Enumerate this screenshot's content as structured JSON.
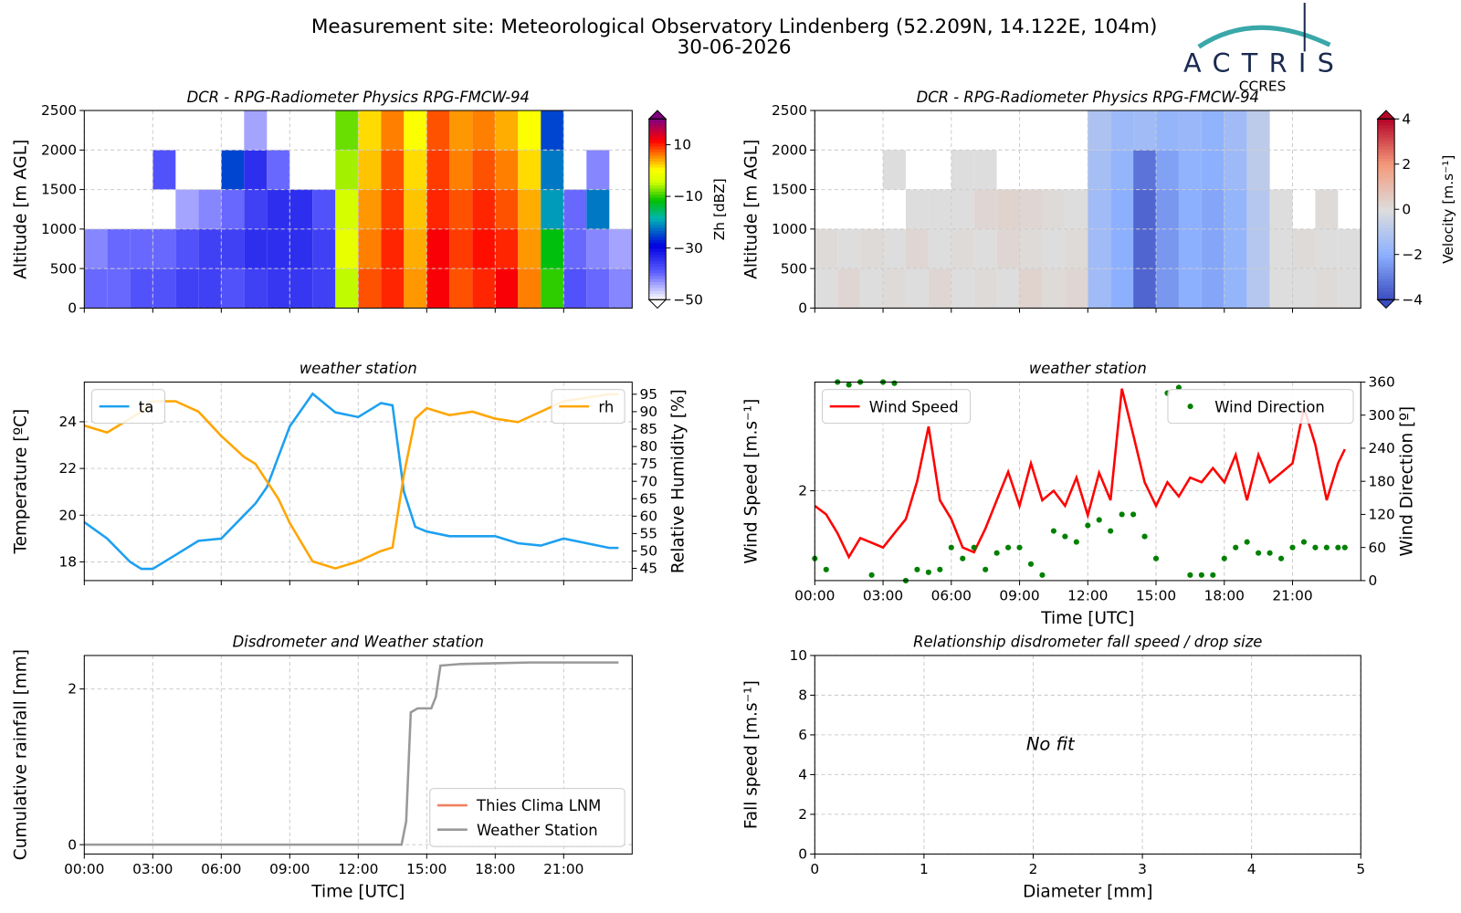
{
  "header": {
    "title": "Measurement site: Meteorological Observatory Lindenberg (52.209N, 14.122E, 104m)",
    "date": "30-06-2026",
    "logo": "ACTRIS",
    "logo_sub": "CCRES"
  },
  "chart_data": [
    {
      "type": "heatmap",
      "title": "DCR - RPG-Radiometer Physics RPG-FMCW-94",
      "ylabel": "Altitude [m AGL]",
      "colorbar_label": "Zh [dBZ]",
      "x": [
        0.5,
        1.5,
        2.5,
        3.5,
        4.5,
        5.5,
        6.5,
        7.5,
        8.5,
        9.5,
        10.5,
        11.5,
        12.5,
        13.5,
        14.5,
        15.5,
        16.5,
        17.5,
        18.5,
        19.5,
        20.5,
        21.5,
        22.5,
        23.5
      ],
      "y": [
        250,
        750,
        1250,
        1750,
        2250
      ],
      "z": [
        [
          -40,
          -40,
          -38,
          -38,
          -36,
          -36,
          -38,
          -36,
          -35,
          -35,
          -36,
          -5,
          8,
          10,
          5,
          12,
          8,
          10,
          12,
          6,
          -10,
          -38,
          -40,
          -42
        ],
        [
          -42,
          -40,
          -40,
          -40,
          -38,
          -36,
          -36,
          -34,
          -34,
          -34,
          -36,
          -2,
          6,
          10,
          4,
          12,
          9,
          11,
          10,
          5,
          -12,
          -40,
          -42,
          -44
        ],
        [
          null,
          null,
          null,
          null,
          -44,
          -42,
          -40,
          -36,
          -34,
          -34,
          -38,
          -4,
          5,
          9,
          3,
          10,
          8,
          10,
          8,
          4,
          -20,
          -40,
          -22,
          null
        ],
        [
          null,
          null,
          null,
          -38,
          null,
          null,
          -25,
          -34,
          -40,
          null,
          null,
          -6,
          3,
          8,
          2,
          9,
          6,
          8,
          6,
          2,
          -22,
          null,
          -42,
          null
        ],
        [
          null,
          null,
          null,
          null,
          null,
          null,
          null,
          -44,
          null,
          null,
          null,
          -8,
          2,
          6,
          0,
          8,
          5,
          6,
          4,
          0,
          -25,
          null,
          null,
          null
        ]
      ],
      "xlim": [
        0,
        24
      ],
      "xticks": [
        0,
        3,
        6,
        9,
        12,
        15,
        18,
        21
      ],
      "xticklabels": false,
      "ylim": [
        0,
        2500
      ],
      "yticks": [
        0,
        500,
        1000,
        1500,
        2000,
        2500
      ],
      "grid": true,
      "clim": [
        -50,
        20
      ],
      "cticks": [
        {
          "value": 10,
          "label": "10"
        },
        {
          "value": -10,
          "label": "−10"
        },
        {
          "value": -30,
          "label": "−30"
        },
        {
          "value": -50,
          "label": "−50"
        }
      ]
    },
    {
      "type": "heatmap",
      "title": "DCR - RPG-Radiometer Physics RPG-FMCW-94",
      "ylabel": "Altitude [m AGL]",
      "colorbar_label": "Velocity [m.s⁻¹]",
      "x": [
        0.5,
        1.5,
        2.5,
        3.5,
        4.5,
        5.5,
        6.5,
        7.5,
        8.5,
        9.5,
        10.5,
        11.5,
        12.5,
        13.5,
        14.5,
        15.5,
        16.5,
        17.5,
        18.5,
        19.5,
        20.5,
        21.5,
        22.5,
        23.5
      ],
      "y": [
        250,
        750,
        1250,
        1750,
        2250
      ],
      "z": [
        [
          0,
          0.2,
          0,
          0.1,
          0,
          0.2,
          0,
          0.1,
          0,
          0.3,
          0.1,
          0.2,
          -1.5,
          -2,
          -3.5,
          -2.5,
          -2,
          -2.2,
          -1.8,
          -1,
          0,
          0,
          0.1,
          0
        ],
        [
          0.1,
          0,
          0.1,
          0,
          0.2,
          0,
          0.1,
          0,
          0.2,
          0.1,
          0,
          0.1,
          -1.5,
          -2,
          -3.5,
          -2.5,
          -2,
          -2.2,
          -1.8,
          -1,
          0,
          0.1,
          0,
          0
        ],
        [
          null,
          null,
          null,
          null,
          0,
          0,
          0,
          0.2,
          0.3,
          0.2,
          0.1,
          0,
          -1.5,
          -2,
          -3.5,
          -2.5,
          -2,
          -2.2,
          -1.8,
          -1,
          0,
          null,
          0.1,
          null
        ],
        [
          null,
          null,
          null,
          0,
          null,
          null,
          0,
          0,
          null,
          null,
          null,
          null,
          -1.4,
          -1.8,
          -3.2,
          -2.3,
          -1.9,
          -2,
          -1.6,
          -0.8,
          null,
          null,
          null,
          null
        ],
        [
          null,
          null,
          null,
          null,
          null,
          null,
          null,
          null,
          null,
          null,
          null,
          null,
          -1.2,
          -1.6,
          -1.5,
          -1.8,
          -1.7,
          -1.9,
          -1.5,
          -0.8,
          null,
          null,
          null,
          null
        ]
      ],
      "xlim": [
        0,
        24
      ],
      "xticks": [
        0,
        3,
        6,
        9,
        12,
        15,
        18,
        21
      ],
      "xticklabels": false,
      "ylim": [
        0,
        2500
      ],
      "yticks": [
        0,
        500,
        1000,
        1500,
        2000,
        2500
      ],
      "grid": true,
      "clim": [
        -4,
        4
      ],
      "cticks": [
        4,
        2,
        0,
        {
          "value": -2,
          "label": "−2"
        },
        {
          "value": -4,
          "label": "−4"
        }
      ]
    },
    {
      "type": "line",
      "title": "weather station",
      "ylabel": "Temperature [ºC]",
      "y2label": "Relative Humidity [%]",
      "x": [
        0,
        1,
        2,
        2.5,
        3,
        4,
        5,
        6,
        7,
        7.5,
        8,
        8.5,
        9,
        10,
        11,
        12,
        13,
        13.5,
        14,
        14.5,
        15,
        16,
        17,
        18,
        19,
        20,
        21,
        22,
        23,
        23.4
      ],
      "series": [
        {
          "name": "ta",
          "color": "#1ca0f0",
          "legend": "upper left",
          "values": [
            19.7,
            19.0,
            18.0,
            17.7,
            17.7,
            18.3,
            18.9,
            19.0,
            20.0,
            20.5,
            21.2,
            22.5,
            23.8,
            25.2,
            24.4,
            24.2,
            24.8,
            24.7,
            21.0,
            19.5,
            19.3,
            19.1,
            19.1,
            19.1,
            18.8,
            18.7,
            19.0,
            18.8,
            18.6,
            18.6
          ]
        },
        {
          "name": "rh",
          "color": "#ffa500",
          "axis": "y2",
          "legend": "upper right",
          "values": [
            86,
            84,
            88,
            90,
            93,
            93,
            90,
            83,
            77,
            75,
            70,
            65,
            58,
            47,
            45,
            47,
            50,
            51,
            72,
            88,
            91,
            89,
            90,
            88,
            87,
            90,
            93,
            94,
            95,
            95
          ]
        }
      ],
      "xlim": [
        0,
        24
      ],
      "xticks": [
        0,
        3,
        6,
        9,
        12,
        15,
        18,
        21
      ],
      "xticklabels": false,
      "ylim": [
        17.2,
        25.7
      ],
      "yticks": [
        18,
        20,
        22,
        24
      ],
      "y2lim": [
        41.5,
        98.5
      ],
      "y2ticks": [
        45,
        50,
        55,
        60,
        65,
        70,
        75,
        80,
        85,
        90,
        95
      ],
      "grid": true
    },
    {
      "type": "line",
      "title": "weather station",
      "ylabel": "Wind Speed [m.s⁻¹]",
      "y2label": "Wind Direction [º]",
      "xlabel": "Time [UTC]",
      "x": [
        0,
        0.5,
        1,
        1.5,
        2,
        2.5,
        3,
        3.5,
        4,
        4.5,
        5,
        5.5,
        6,
        6.5,
        7,
        7.5,
        8,
        8.5,
        9,
        9.5,
        10,
        10.5,
        11,
        11.5,
        12,
        12.5,
        13,
        13.5,
        14,
        14.5,
        15,
        15.5,
        16,
        16.5,
        17,
        17.5,
        18,
        18.5,
        19,
        19.5,
        20,
        20.5,
        21,
        21.5,
        22,
        22.5,
        23,
        23.3
      ],
      "series": [
        {
          "name": "Wind Speed",
          "color": "#ff0000",
          "legend": "upper left",
          "values": [
            1.84,
            1.75,
            1.55,
            1.3,
            1.5,
            1.45,
            1.4,
            1.55,
            1.7,
            2.1,
            2.68,
            1.9,
            1.7,
            1.4,
            1.35,
            1.6,
            1.9,
            2.2,
            1.84,
            2.29,
            1.9,
            2.0,
            1.84,
            2.14,
            1.74,
            2.19,
            1.9,
            3.08,
            2.59,
            2.09,
            1.84,
            2.09,
            1.94,
            2.14,
            2.09,
            2.24,
            2.09,
            2.38,
            1.9,
            2.38,
            2.09,
            2.19,
            2.29,
            2.88,
            2.49,
            1.9,
            2.29,
            2.44
          ]
        },
        {
          "name": "Wind Direction",
          "color": "#008000",
          "axis": "y2",
          "marker": "dot",
          "legend": "upper right",
          "values": [
            40,
            20,
            360,
            355,
            360,
            10,
            360,
            358,
            0,
            20,
            15,
            20,
            60,
            40,
            60,
            20,
            50,
            60,
            60,
            30,
            10,
            90,
            80,
            70,
            100,
            110,
            90,
            120,
            120,
            80,
            40,
            340,
            350,
            10,
            10,
            10,
            40,
            60,
            70,
            50,
            50,
            40,
            60,
            70,
            60,
            60,
            60,
            60
          ]
        }
      ],
      "xlim": [
        0,
        24
      ],
      "xticks": [
        {
          "value": 0,
          "label": "00:00"
        },
        {
          "value": 3,
          "label": "03:00"
        },
        {
          "value": 6,
          "label": "06:00"
        },
        {
          "value": 9,
          "label": "09:00"
        },
        {
          "value": 12,
          "label": "12:00"
        },
        {
          "value": 15,
          "label": "15:00"
        },
        {
          "value": 18,
          "label": "18:00"
        },
        {
          "value": 21,
          "label": "21:00"
        }
      ],
      "ylim": [
        1.05,
        3.15
      ],
      "yticks": [
        2
      ],
      "y2lim": [
        0,
        360
      ],
      "y2ticks": [
        0,
        60,
        120,
        180,
        240,
        300,
        360
      ],
      "grid": true
    },
    {
      "type": "line",
      "title": "Disdrometer and Weather station",
      "ylabel": "Cumulative rainfall [mm]",
      "xlabel": "Time [UTC]",
      "x": [
        0,
        13.9,
        14.1,
        14.3,
        14.6,
        15.2,
        15.4,
        15.6,
        16.5,
        18,
        19.5,
        21,
        23.4
      ],
      "series": [
        {
          "name": "Thies Clima LNM",
          "color": "#f08060",
          "legend": "lower right",
          "values": [
            null,
            null,
            null,
            null,
            null,
            null,
            null,
            null,
            null,
            null,
            null,
            null,
            null
          ]
        },
        {
          "name": "Weather Station",
          "color": "#999999",
          "legend": "lower right",
          "values": [
            0,
            0,
            0.3,
            1.7,
            1.75,
            1.75,
            1.9,
            2.3,
            2.32,
            2.33,
            2.34,
            2.34,
            2.34
          ]
        }
      ],
      "xlim": [
        0,
        24
      ],
      "xticks": [
        {
          "value": 0,
          "label": "00:00"
        },
        {
          "value": 3,
          "label": "03:00"
        },
        {
          "value": 6,
          "label": "06:00"
        },
        {
          "value": 9,
          "label": "09:00"
        },
        {
          "value": 12,
          "label": "12:00"
        },
        {
          "value": 15,
          "label": "15:00"
        },
        {
          "value": 18,
          "label": "18:00"
        },
        {
          "value": 21,
          "label": "21:00"
        }
      ],
      "ylim": [
        -0.12,
        2.43
      ],
      "yticks": [
        0,
        2
      ],
      "grid": true
    },
    {
      "type": "scatter",
      "title": "Relationship disdrometer fall speed / drop size",
      "xlabel": "Diameter [mm]",
      "ylabel": "Fall speed [m.s⁻¹]",
      "annotation": "No fit",
      "series": [],
      "xlim": [
        0,
        5
      ],
      "xticks": [
        0,
        1,
        2,
        3,
        4,
        5
      ],
      "ylim": [
        0,
        10
      ],
      "yticks": [
        0,
        2,
        4,
        6,
        8,
        10
      ],
      "grid": true
    }
  ]
}
